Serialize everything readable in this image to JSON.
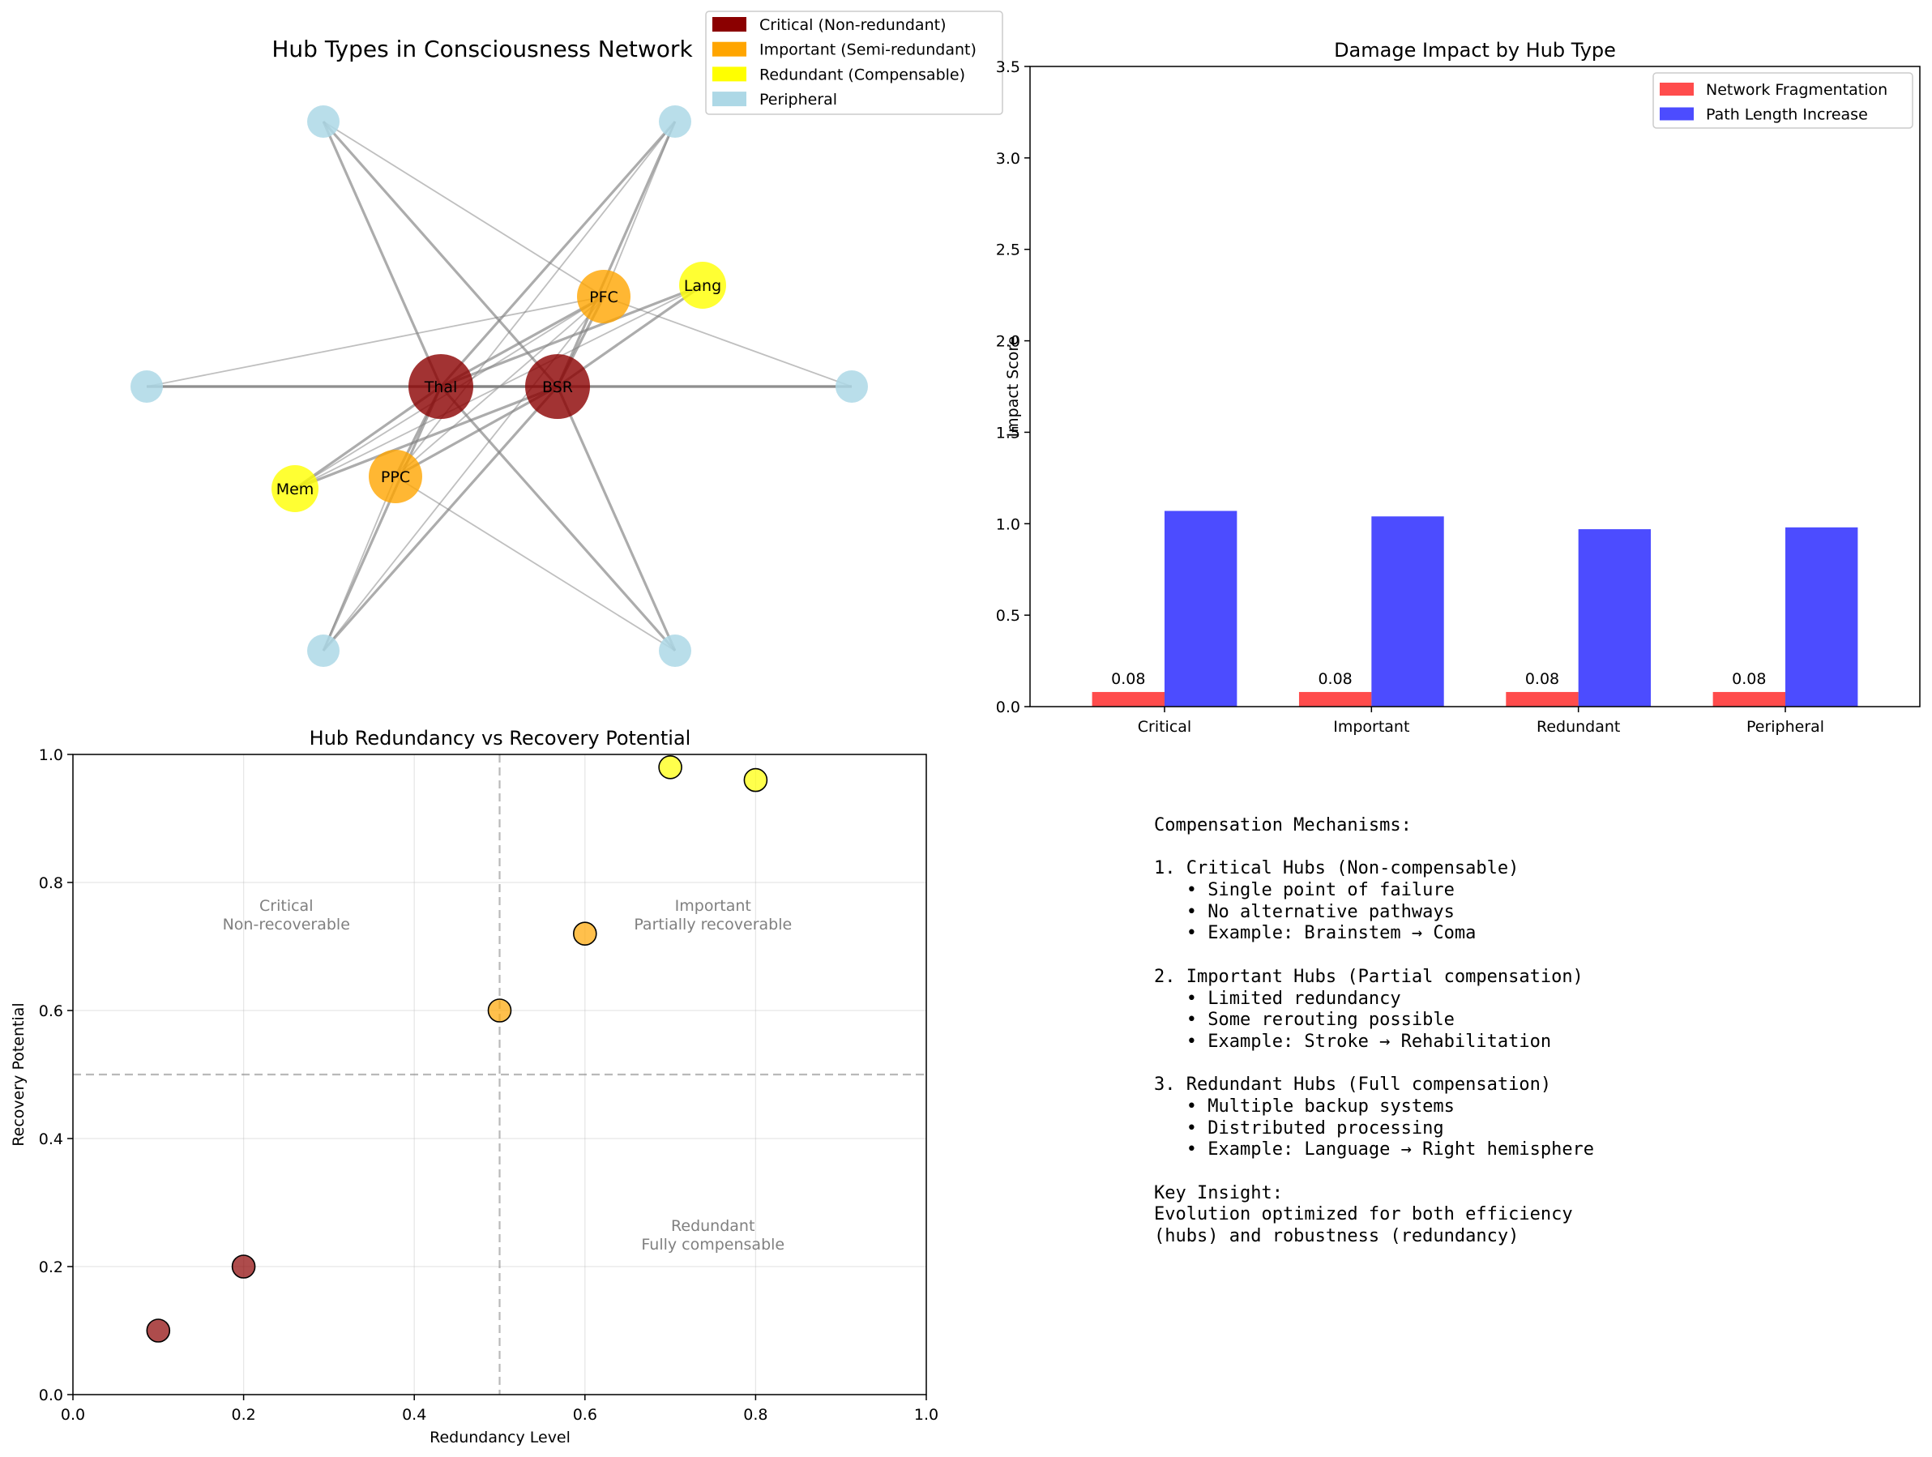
{
  "network": {
    "title": "Hub Types in Consciousness Network",
    "legend": [
      {
        "label": "Critical (Non-redundant)",
        "color": "#8b0000"
      },
      {
        "label": "Important (Semi-redundant)",
        "color": "#ffa500"
      },
      {
        "label": "Redundant (Compensable)",
        "color": "#ffff00"
      },
      {
        "label": "Peripheral",
        "color": "#add8e6"
      }
    ],
    "nodes": [
      {
        "id": "Thal",
        "label": "Thal",
        "type": "critical"
      },
      {
        "id": "BSR",
        "label": "BSR",
        "type": "critical"
      },
      {
        "id": "PFC",
        "label": "PFC",
        "type": "important"
      },
      {
        "id": "PPC",
        "label": "PPC",
        "type": "important"
      },
      {
        "id": "Lang",
        "label": "Lang",
        "type": "redundant"
      },
      {
        "id": "Mem",
        "label": "Mem",
        "type": "redundant"
      },
      {
        "id": "P1",
        "label": "",
        "type": "peripheral"
      },
      {
        "id": "P2",
        "label": "",
        "type": "peripheral"
      },
      {
        "id": "P3",
        "label": "",
        "type": "peripheral"
      },
      {
        "id": "P4",
        "label": "",
        "type": "peripheral"
      },
      {
        "id": "P5",
        "label": "",
        "type": "peripheral"
      },
      {
        "id": "P6",
        "label": "",
        "type": "peripheral"
      }
    ],
    "edges": [
      [
        "Thal",
        "BSR"
      ],
      [
        "Thal",
        "PFC"
      ],
      [
        "Thal",
        "PPC"
      ],
      [
        "Thal",
        "Lang"
      ],
      [
        "Thal",
        "Mem"
      ],
      [
        "Thal",
        "P1"
      ],
      [
        "Thal",
        "P2"
      ],
      [
        "Thal",
        "P3"
      ],
      [
        "Thal",
        "P4"
      ],
      [
        "Thal",
        "P5"
      ],
      [
        "Thal",
        "P6"
      ],
      [
        "BSR",
        "PFC"
      ],
      [
        "BSR",
        "PPC"
      ],
      [
        "BSR",
        "Lang"
      ],
      [
        "BSR",
        "Mem"
      ],
      [
        "BSR",
        "P1"
      ],
      [
        "BSR",
        "P2"
      ],
      [
        "BSR",
        "P3"
      ],
      [
        "BSR",
        "P4"
      ],
      [
        "BSR",
        "P5"
      ],
      [
        "BSR",
        "P6"
      ],
      [
        "PFC",
        "PPC"
      ],
      [
        "PFC",
        "Mem"
      ],
      [
        "PFC",
        "P1"
      ],
      [
        "PFC",
        "P2"
      ],
      [
        "PFC",
        "P3"
      ],
      [
        "PFC",
        "P4"
      ],
      [
        "PFC",
        "P5"
      ],
      [
        "PPC",
        "P2"
      ],
      [
        "PPC",
        "P5"
      ],
      [
        "PPC",
        "P6"
      ],
      [
        "Lang",
        "Mem"
      ]
    ]
  },
  "chart_data": [
    {
      "type": "bar",
      "title": "Damage Impact by Hub Type",
      "xlabel": "",
      "ylabel": "Impact Score",
      "ylim": [
        0,
        3.5
      ],
      "yticks": [
        "0.0",
        "0.5",
        "1.0",
        "1.5",
        "2.0",
        "2.5",
        "3.0",
        "3.5"
      ],
      "categories": [
        "Critical",
        "Important",
        "Redundant",
        "Peripheral"
      ],
      "series": [
        {
          "name": "Network Fragmentation",
          "color": "#ff0000",
          "values": [
            0.08,
            0.08,
            0.08,
            0.08
          ],
          "labels": [
            "0.08",
            "0.08",
            "0.08",
            "0.08"
          ]
        },
        {
          "name": "Path Length Increase",
          "color": "#0000ff",
          "values": [
            1.07,
            1.04,
            0.97,
            0.98
          ]
        }
      ],
      "legend_position": "top-right"
    },
    {
      "type": "scatter",
      "title": "Hub Redundancy vs Recovery Potential",
      "xlabel": "Redundancy Level",
      "ylabel": "Recovery Potential",
      "xlim": [
        0,
        1
      ],
      "ylim": [
        0,
        1
      ],
      "xticks": [
        "0.0",
        "0.2",
        "0.4",
        "0.6",
        "0.8",
        "1.0"
      ],
      "yticks": [
        "0.0",
        "0.2",
        "0.4",
        "0.6",
        "0.8",
        "1.0"
      ],
      "grid": true,
      "points": [
        {
          "x": 0.1,
          "y": 0.1,
          "color": "#8b0000"
        },
        {
          "x": 0.2,
          "y": 0.2,
          "color": "#8b0000"
        },
        {
          "x": 0.5,
          "y": 0.6,
          "color": "#ffa500"
        },
        {
          "x": 0.6,
          "y": 0.72,
          "color": "#ffa500"
        },
        {
          "x": 0.7,
          "y": 0.98,
          "color": "#ffff00"
        },
        {
          "x": 0.8,
          "y": 0.96,
          "color": "#ffff00"
        }
      ],
      "reference_lines": {
        "x": 0.5,
        "y": 0.5
      },
      "annotations": [
        {
          "x": 0.25,
          "y": 0.75,
          "lines": [
            "Critical",
            "Non-recoverable"
          ]
        },
        {
          "x": 0.75,
          "y": 0.75,
          "lines": [
            "Important",
            "Partially recoverable"
          ]
        },
        {
          "x": 0.75,
          "y": 0.25,
          "lines": [
            "Redundant",
            "Fully compensable"
          ]
        }
      ]
    }
  ],
  "compensation": {
    "lines": [
      "Compensation Mechanisms:",
      "",
      "1. Critical Hubs (Non-compensable)",
      "   • Single point of failure",
      "   • No alternative pathways",
      "   • Example: Brainstem → Coma",
      "",
      "2. Important Hubs (Partial compensation)",
      "   • Limited redundancy",
      "   • Some rerouting possible",
      "   • Example: Stroke → Rehabilitation",
      "",
      "3. Redundant Hubs (Full compensation)",
      "   • Multiple backup systems",
      "   • Distributed processing",
      "   • Example: Language → Right hemisphere",
      "",
      "Key Insight:",
      "Evolution optimized for both efficiency",
      "(hubs) and robustness (redundancy)"
    ]
  }
}
